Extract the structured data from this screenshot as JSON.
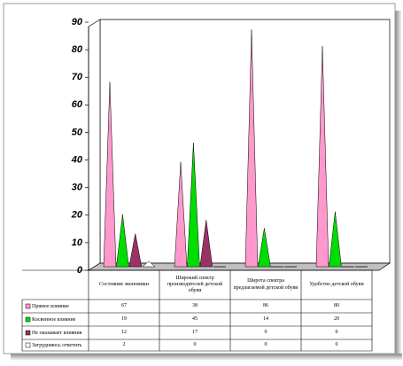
{
  "chart_data": {
    "type": "cone",
    "categories": [
      "Состояние экономики",
      "Широкий спектр производителей детской обуви",
      "Широта спектра предлагаемой детской обуви",
      "Удобство детской обуви"
    ],
    "series": [
      {
        "name": "Прямое влияние",
        "color": "#ff99cc",
        "values": [
          67,
          38,
          86,
          80
        ]
      },
      {
        "name": "Косвенное влияние",
        "color": "#00dd00",
        "values": [
          19,
          45,
          14,
          20
        ]
      },
      {
        "name": "Не оказывает влияния",
        "color": "#993366",
        "values": [
          12,
          17,
          0,
          0
        ]
      },
      {
        "name": "Затрудняюсь ответить",
        "color": "#ffffff",
        "values": [
          2,
          0,
          0,
          0
        ]
      }
    ],
    "ylim": [
      0,
      90
    ],
    "yticks": [
      0,
      10,
      20,
      30,
      40,
      50,
      60,
      70,
      80,
      90
    ]
  }
}
